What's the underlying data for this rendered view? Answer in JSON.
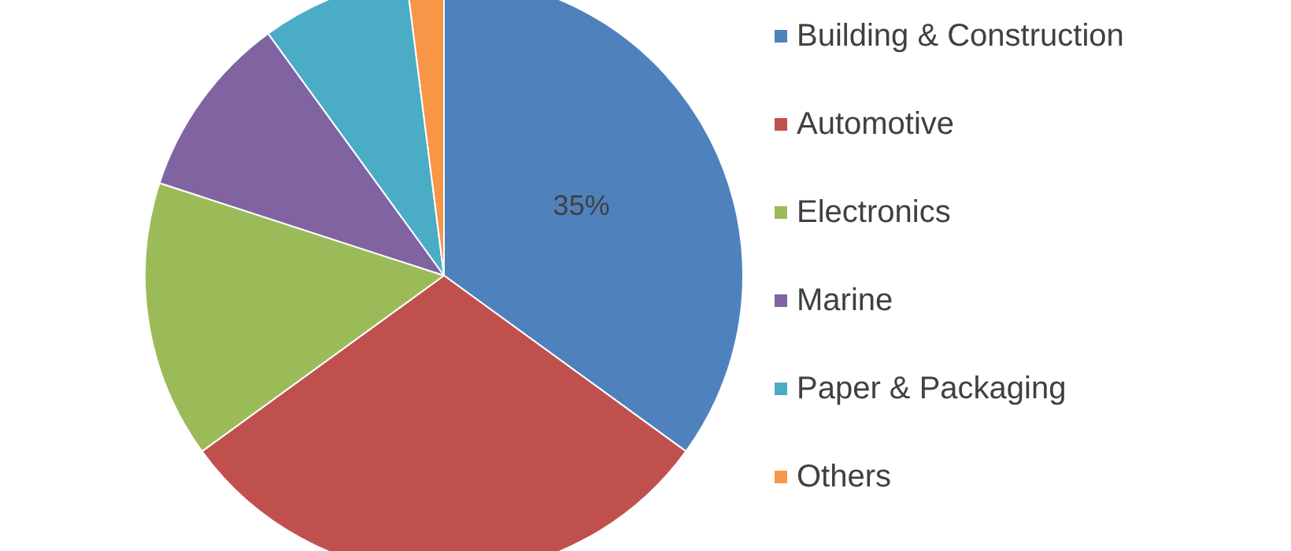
{
  "chart_data": {
    "type": "pie",
    "categories": [
      "Building & Construction",
      "Automotive",
      "Electronics",
      "Marine",
      "Paper & Packaging",
      "Others"
    ],
    "values": [
      35,
      30,
      15,
      10,
      8,
      2
    ],
    "colors": [
      "#4f81bd",
      "#c0504d",
      "#9bbb59",
      "#8064a2",
      "#4bacc6",
      "#f79646"
    ],
    "value_labels": [
      "35%",
      null,
      null,
      null,
      null,
      null
    ],
    "legend": "right"
  }
}
